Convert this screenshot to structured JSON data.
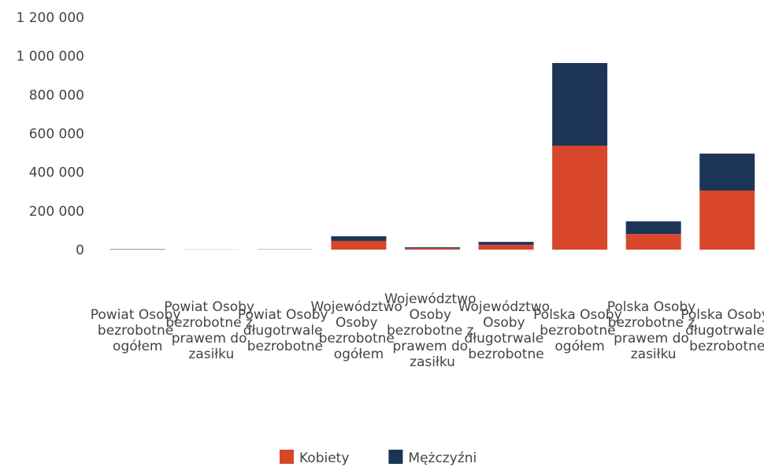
{
  "chart_data": {
    "type": "stacked_bar",
    "categories": [
      "Powiat Osoby bezrobotne ogółem",
      "Powiat Osoby bezrobotne z prawem do zasiłku",
      "Powiat Osoby długotrwale bezrobotne",
      "Województwo Osoby bezrobotne ogółem",
      "Województwo Osoby bezrobotne z prawem do zasiłku",
      "Województwo Osoby długotrwale bezrobotne",
      "Polska Osoby bezrobotne ogółem",
      "Polska Osoby bezrobotne z prawem do zasiłku",
      "Polska Osoby długotrwale bezrobotne"
    ],
    "series": [
      {
        "name": "Kobiety",
        "color": "#d9472b",
        "values": [
          1500,
          300,
          900,
          45000,
          7000,
          25000,
          537000,
          81000,
          305000
        ]
      },
      {
        "name": "Mężczyźni",
        "color": "#1c3557",
        "values": [
          1200,
          300,
          700,
          24000,
          5000,
          15000,
          427000,
          65000,
          191000
        ]
      }
    ],
    "ylim": [
      0,
      1200000
    ],
    "yticks": [
      0,
      {
        "value": 200000,
        "label": "200 000"
      },
      {
        "value": 400000,
        "label": "400 000"
      },
      {
        "value": 600000,
        "label": "600 000"
      },
      {
        "value": 800000,
        "label": "800 000"
      },
      {
        "value": 1000000,
        "label": "1 000 000"
      },
      {
        "value": 1200000,
        "label": "1 200 000"
      }
    ],
    "legend": "bottom"
  }
}
